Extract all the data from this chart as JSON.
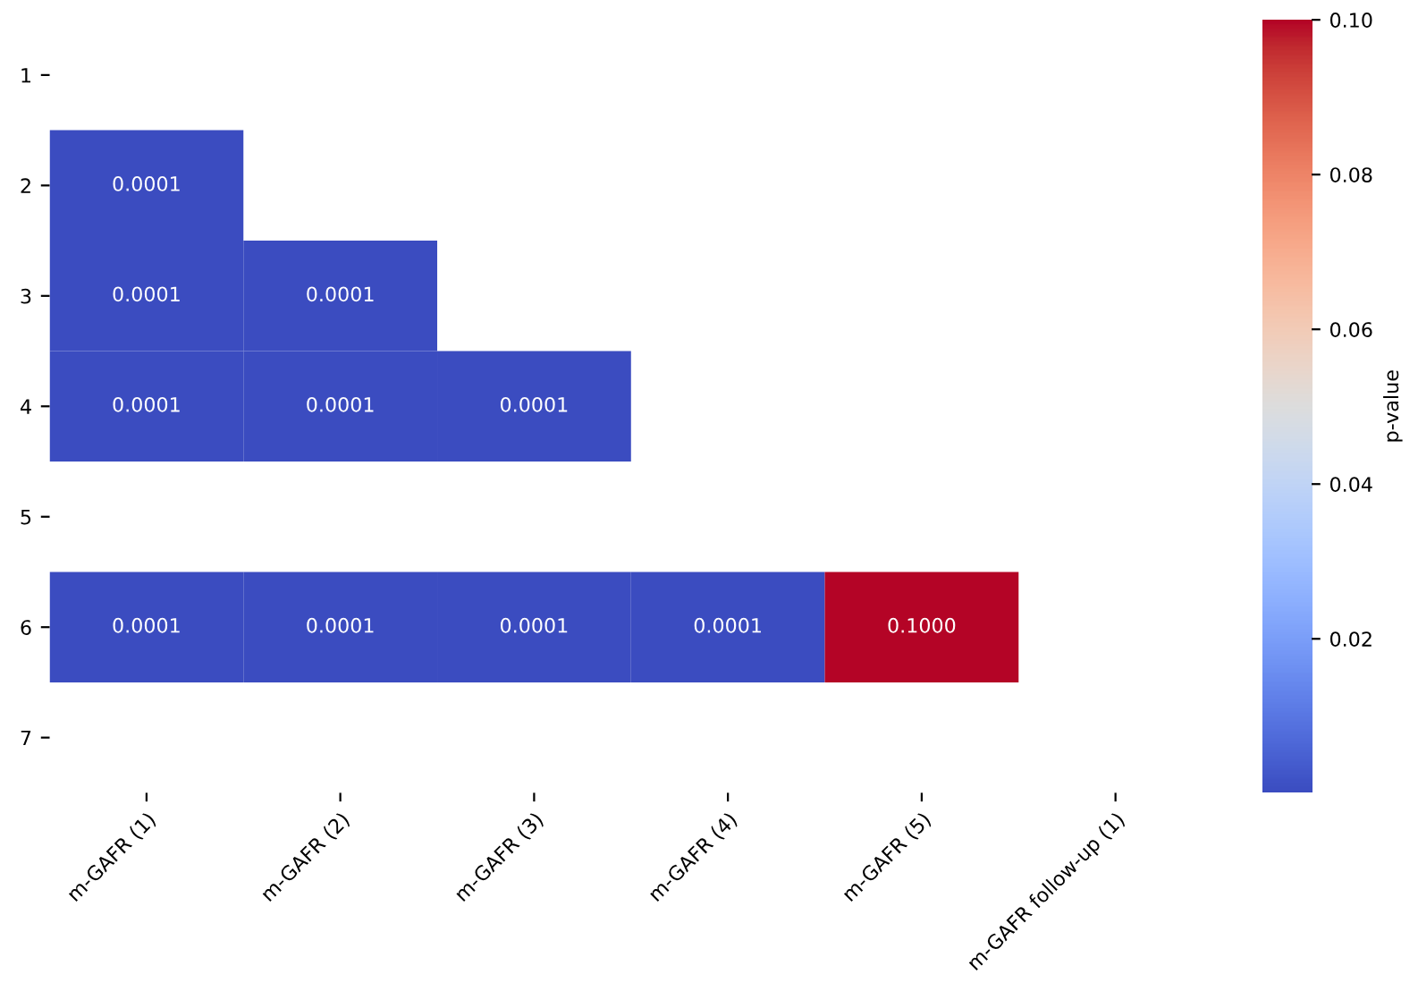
{
  "chart_data": {
    "type": "heatmap",
    "clabel": "p-value",
    "categories": [
      "m-GAFR (1)",
      "m-GAFR (2)",
      "m-GAFR (3)",
      "m-GAFR (4)",
      "m-GAFR (5)",
      "m-GAFR follow-up (1)"
    ],
    "y_categories": [
      "1",
      "2",
      "3",
      "4",
      "5",
      "6",
      "7"
    ],
    "cells": [
      [
        null,
        null,
        null,
        null,
        null,
        null
      ],
      [
        0.0001,
        null,
        null,
        null,
        null,
        null
      ],
      [
        0.0001,
        0.0001,
        null,
        null,
        null,
        null
      ],
      [
        0.0001,
        0.0001,
        0.0001,
        null,
        null,
        null
      ],
      [
        null,
        null,
        null,
        null,
        null,
        null
      ],
      [
        0.0001,
        0.0001,
        0.0001,
        0.0001,
        0.1,
        null
      ],
      [
        null,
        null,
        null,
        null,
        null,
        null
      ]
    ],
    "cell_labels": [
      [
        null,
        null,
        null,
        null,
        null,
        null
      ],
      [
        "0.0001",
        null,
        null,
        null,
        null,
        null
      ],
      [
        "0.0001",
        "0.0001",
        null,
        null,
        null,
        null
      ],
      [
        "0.0001",
        "0.0001",
        "0.0001",
        null,
        null,
        null
      ],
      [
        null,
        null,
        null,
        null,
        null,
        null
      ],
      [
        "0.0001",
        "0.0001",
        "0.0001",
        "0.0001",
        "0.1000",
        null
      ],
      [
        null,
        null,
        null,
        null,
        null,
        null
      ]
    ],
    "clim": [
      0.0001,
      0.1
    ],
    "cticks": [
      0.02,
      0.04,
      0.06,
      {
        "value": 0.1,
        "label": "0.10"
      },
      0.08
    ]
  }
}
